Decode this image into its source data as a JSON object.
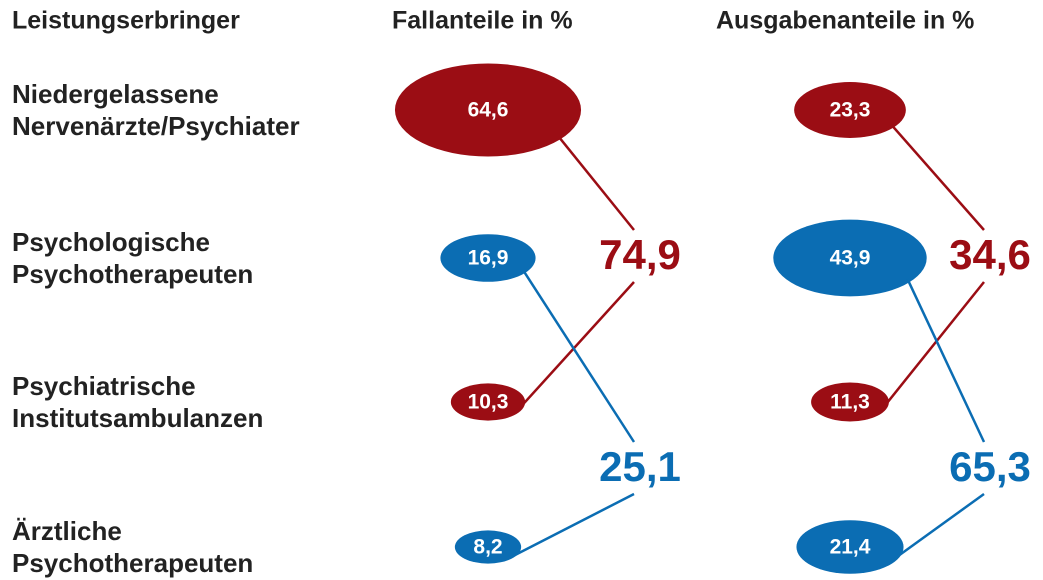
{
  "header": {
    "provider": "Leistungserbringer",
    "cases": "Fallanteile in %",
    "spending": "Ausgabenanteile in %"
  },
  "providers": [
    {
      "name_lines": [
        "Niedergelassene",
        "Nervenärzte/Psychiater"
      ],
      "color": "#9b0d14",
      "group": 0,
      "cases": {
        "value": 64.6,
        "label": "64,6"
      },
      "spending": {
        "value": 23.3,
        "label": "23,3"
      }
    },
    {
      "name_lines": [
        "Psychologische",
        "Psychotherapeuten"
      ],
      "color": "#0b6db3",
      "group": 1,
      "cases": {
        "value": 16.9,
        "label": "16,9"
      },
      "spending": {
        "value": 43.9,
        "label": "43,9"
      }
    },
    {
      "name_lines": [
        "Psychiatrische",
        "Institutsambulanzen"
      ],
      "color": "#9b0d14",
      "group": 0,
      "cases": {
        "value": 10.3,
        "label": "10,3"
      },
      "spending": {
        "value": 11.3,
        "label": "11,3"
      }
    },
    {
      "name_lines": [
        "Ärztliche",
        "Psychotherapeuten"
      ],
      "color": "#0b6db3",
      "group": 1,
      "cases": {
        "value": 8.2,
        "label": "8,2"
      },
      "spending": {
        "value": 21.4,
        "label": "21,4"
      }
    }
  ],
  "groups": [
    {
      "color": "#9b0d14",
      "cases": {
        "value": 74.9,
        "label": "74,9"
      },
      "spending": {
        "value": 34.6,
        "label": "34,6"
      }
    },
    {
      "color": "#0b6db3",
      "cases": {
        "value": 25.1,
        "label": "25,1"
      },
      "spending": {
        "value": 65.3,
        "label": "65,3"
      }
    }
  ]
}
